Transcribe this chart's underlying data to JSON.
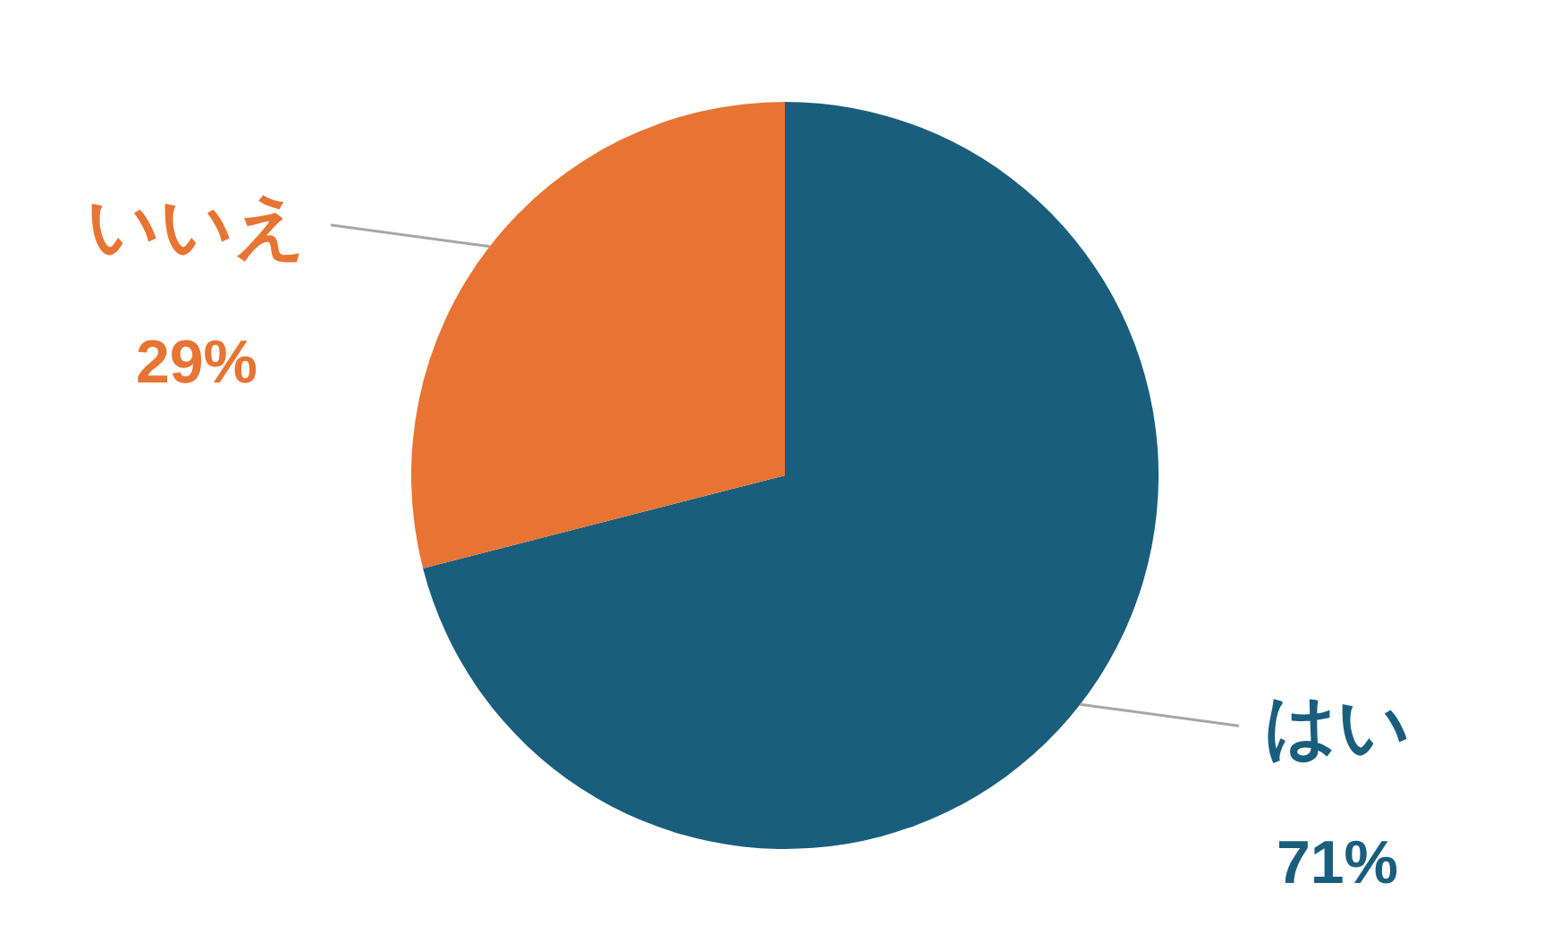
{
  "chart_data": {
    "type": "pie",
    "categories": [
      "はい",
      "いいえ"
    ],
    "values": [
      71,
      29
    ],
    "colors": [
      "#1a5e7e",
      "#e87433"
    ],
    "value_labels": [
      "71%",
      "29%"
    ]
  }
}
